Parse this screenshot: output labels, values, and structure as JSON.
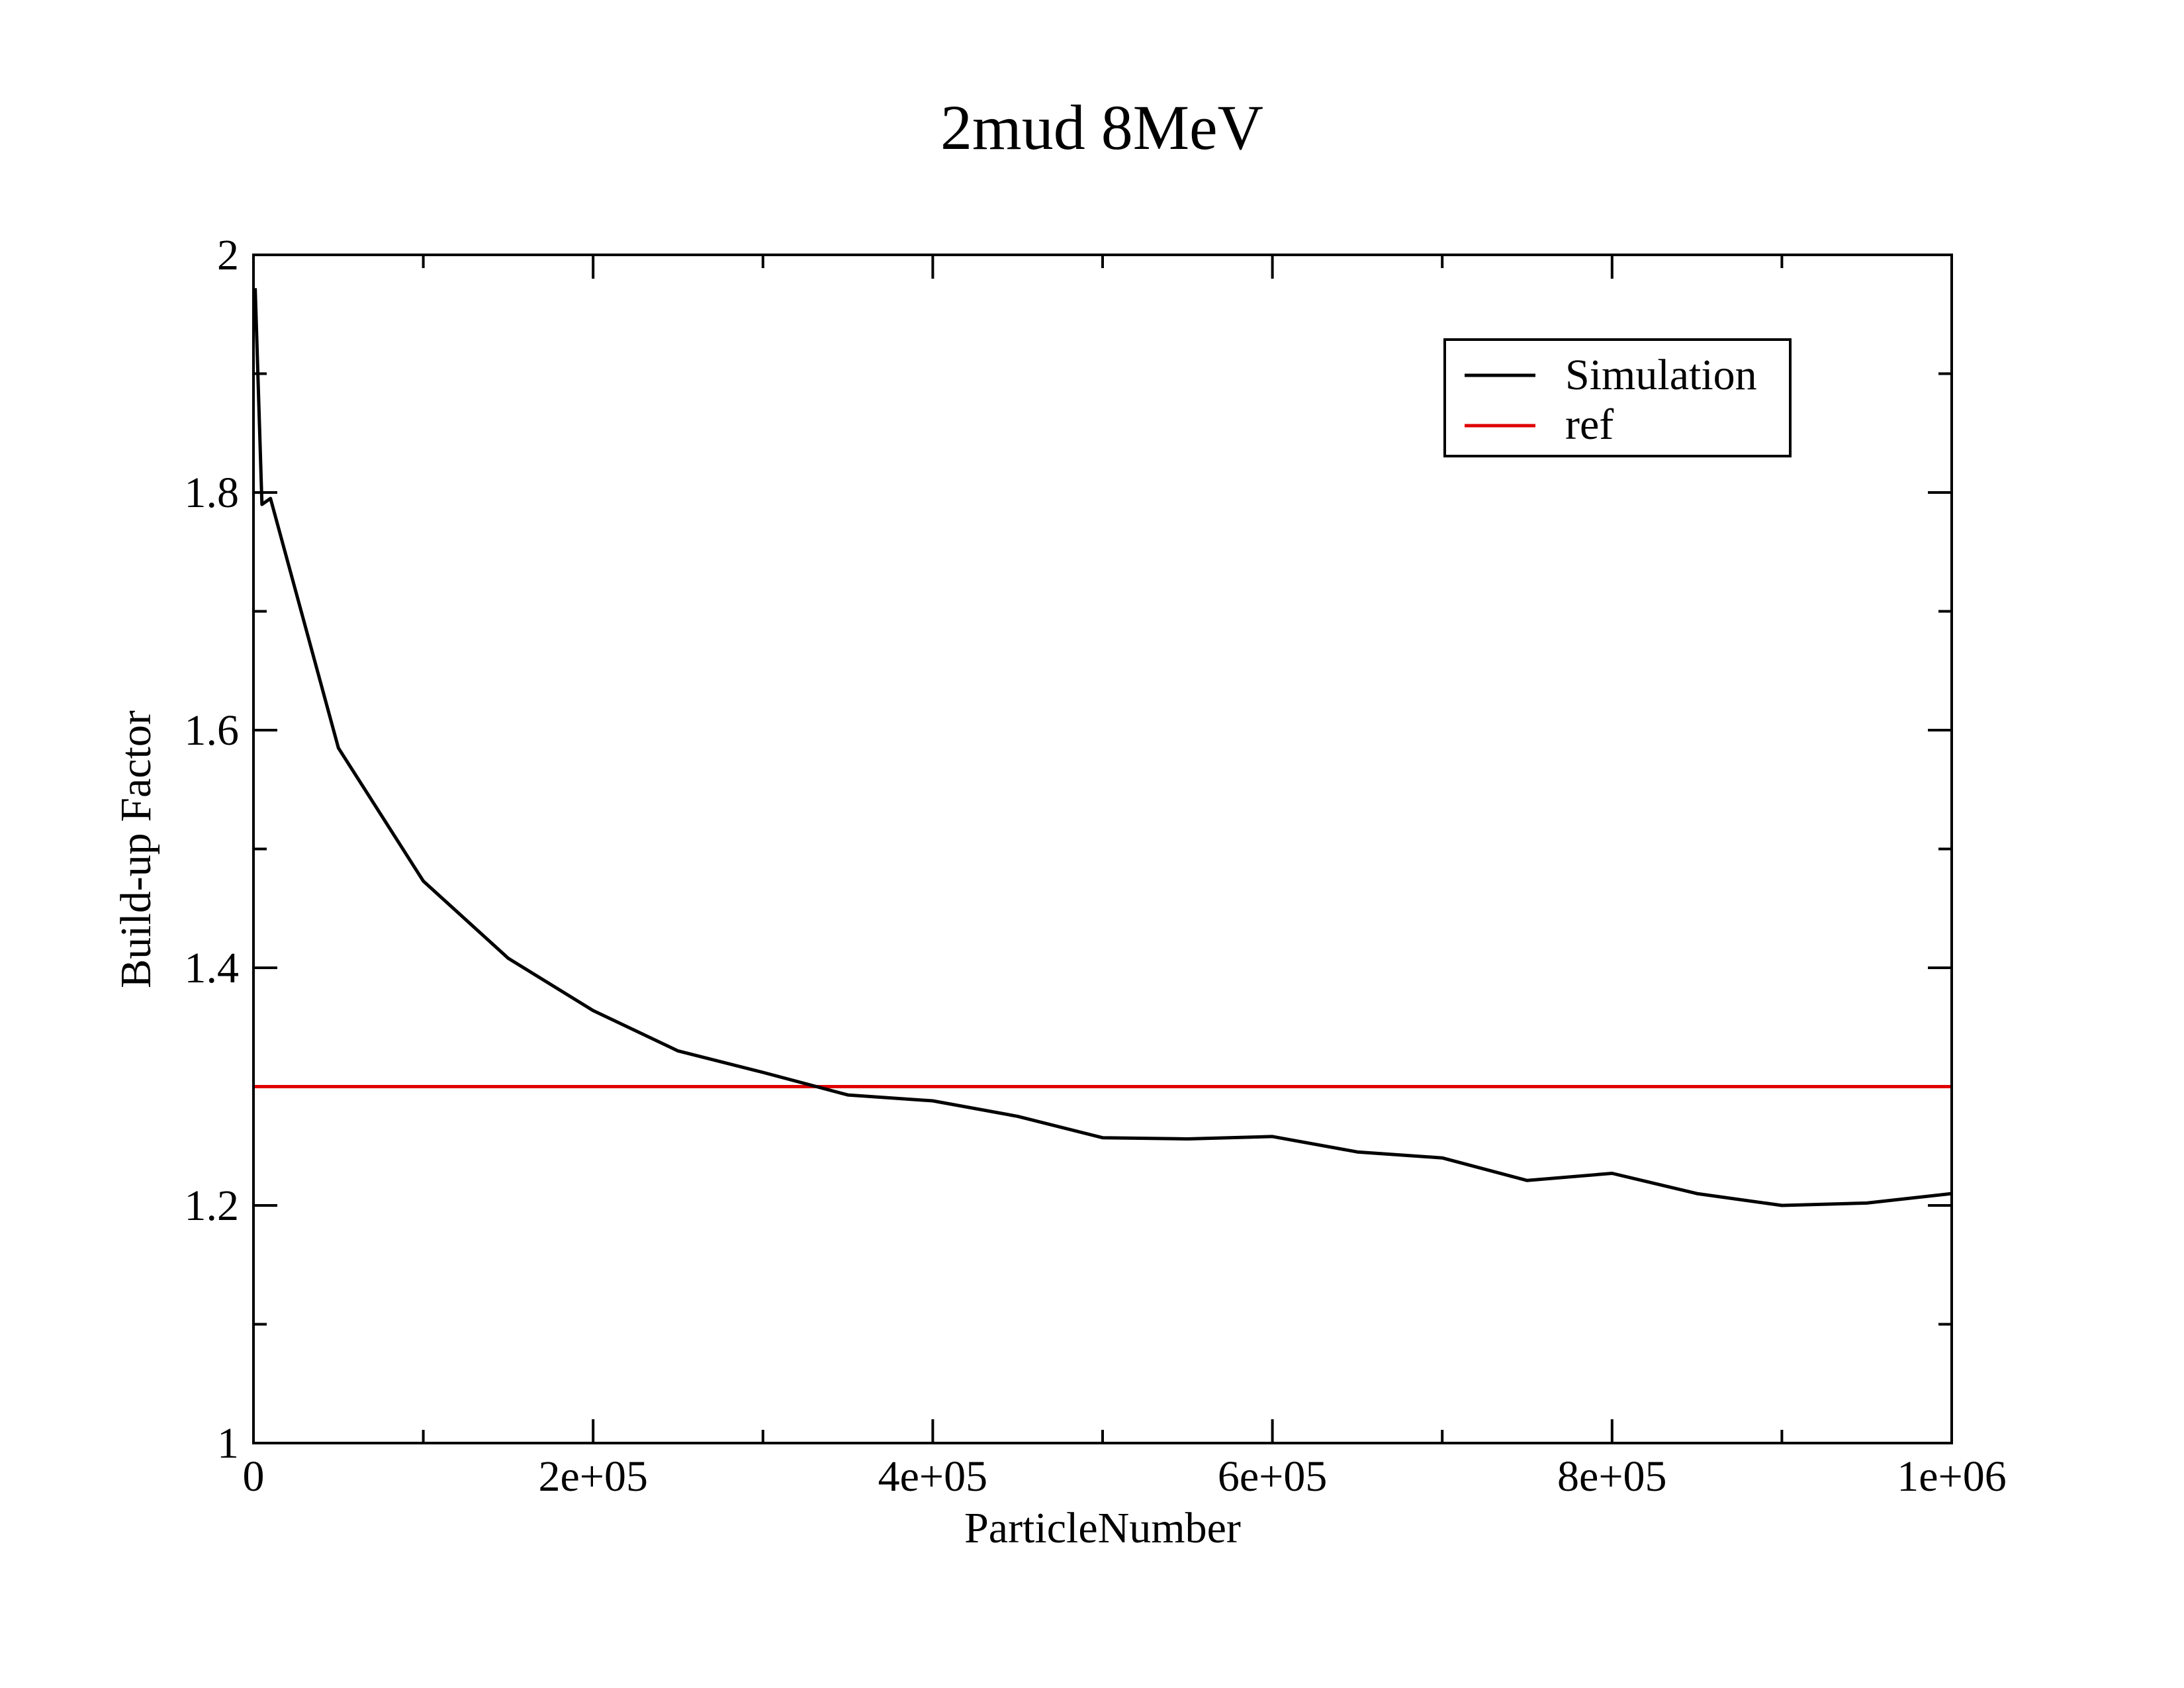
{
  "chart_data": {
    "type": "line",
    "title": "2mud 8MeV",
    "xlabel": "ParticleNumber",
    "ylabel": "Build-up Factor",
    "xlim": [
      0,
      1000000
    ],
    "ylim": [
      1,
      2
    ],
    "x_ticks": [
      0,
      200000,
      400000,
      600000,
      800000,
      1000000
    ],
    "x_tick_labels": [
      "0",
      "2e+05",
      "4e+05",
      "6e+05",
      "8e+05",
      "1e+06"
    ],
    "y_ticks": [
      1,
      1.2,
      1.4,
      1.6,
      1.8,
      2
    ],
    "y_tick_labels": [
      "1",
      "1.2",
      "1.4",
      "1.6",
      "1.8",
      "2"
    ],
    "grid": false,
    "legend_position": "top-right",
    "series": [
      {
        "name": "Simulation",
        "color": "#000000",
        "x": [
          1000,
          5000,
          10000,
          50000,
          100000,
          150000,
          200000,
          250000,
          300000,
          350000,
          400000,
          450000,
          500000,
          550000,
          600000,
          650000,
          700000,
          750000,
          800000,
          850000,
          900000,
          950000,
          1000000
        ],
        "y": [
          1.972,
          1.79,
          1.795,
          1.585,
          1.473,
          1.408,
          1.364,
          1.33,
          1.312,
          1.293,
          1.288,
          1.275,
          1.257,
          1.256,
          1.258,
          1.245,
          1.24,
          1.221,
          1.227,
          1.21,
          1.2,
          1.202,
          1.21
        ]
      },
      {
        "name": "ref",
        "color": "#e00000",
        "x": [
          0,
          1000000
        ],
        "y": [
          1.3,
          1.3
        ]
      }
    ]
  }
}
